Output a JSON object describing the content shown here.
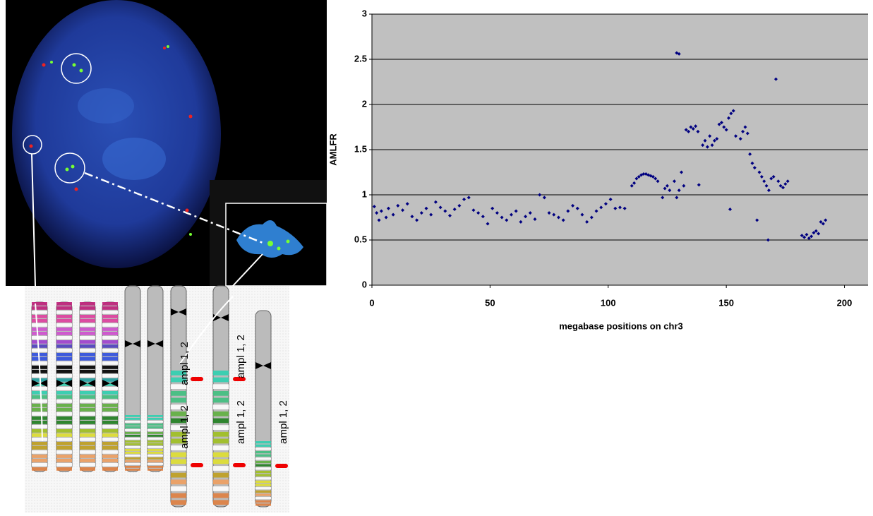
{
  "chart_data": {
    "type": "scatter",
    "xlabel": "megabase positions on chr3",
    "ylabel": "AMLFR",
    "color": "#000080",
    "grid": true,
    "xlim": [
      0,
      210
    ],
    "ylim": [
      0,
      3
    ],
    "xticks": [
      0,
      50,
      100,
      150,
      200
    ],
    "yticks": [
      0,
      0.5,
      1,
      1.5,
      2,
      2.5,
      3
    ],
    "x": [
      1,
      2,
      3,
      4,
      6,
      7,
      9,
      11,
      13,
      15,
      17,
      19,
      21,
      23,
      25,
      27,
      29,
      31,
      33,
      35,
      37,
      39,
      41,
      43,
      45,
      47,
      49,
      51,
      53,
      55,
      57,
      59,
      61,
      63,
      65,
      67,
      69,
      71,
      73,
      75,
      77,
      79,
      81,
      83,
      85,
      87,
      89,
      91,
      93,
      95,
      97,
      99,
      101,
      103,
      105,
      107,
      110,
      111,
      112,
      113,
      114,
      115,
      116,
      117,
      118,
      119,
      120,
      121,
      123,
      124,
      125,
      126,
      128,
      129,
      130,
      131,
      132,
      133,
      134,
      135,
      136,
      137,
      138,
      129,
      130,
      140,
      141,
      142,
      143,
      144,
      145,
      146,
      138.4,
      147,
      148,
      149,
      150,
      151,
      152,
      153,
      154,
      151.6,
      156,
      157,
      158,
      159,
      160,
      161,
      162,
      163,
      164,
      165,
      166,
      167,
      168,
      169,
      170,
      171,
      167.7,
      172,
      173,
      174,
      175,
      176,
      182,
      183,
      184,
      185,
      186,
      187,
      188,
      189,
      190,
      191,
      192
    ],
    "values": [
      0.87,
      0.8,
      0.72,
      0.82,
      0.75,
      0.85,
      0.78,
      0.88,
      0.83,
      0.9,
      0.76,
      0.72,
      0.8,
      0.85,
      0.78,
      0.92,
      0.86,
      0.82,
      0.77,
      0.84,
      0.88,
      0.95,
      0.97,
      0.83,
      0.8,
      0.76,
      0.68,
      0.85,
      0.8,
      0.75,
      0.72,
      0.78,
      0.82,
      0.7,
      0.76,
      0.8,
      0.73,
      1.0,
      0.97,
      0.8,
      0.78,
      0.75,
      0.72,
      0.82,
      0.88,
      0.85,
      0.78,
      0.7,
      0.75,
      0.82,
      0.86,
      0.9,
      0.95,
      0.85,
      0.86,
      0.85,
      1.1,
      1.13,
      1.18,
      1.2,
      1.22,
      1.23,
      1.23,
      1.22,
      1.21,
      1.2,
      1.18,
      1.15,
      0.97,
      1.07,
      1.1,
      1.05,
      1.15,
      0.97,
      1.05,
      1.25,
      1.1,
      1.72,
      1.7,
      1.75,
      1.73,
      1.76,
      1.7,
      2.57,
      2.56,
      1.55,
      1.6,
      1.53,
      1.65,
      1.55,
      1.6,
      1.62,
      1.11,
      1.78,
      1.8,
      1.75,
      1.72,
      1.85,
      1.9,
      1.93,
      1.65,
      0.84,
      1.62,
      1.7,
      1.75,
      1.68,
      1.45,
      1.35,
      1.3,
      0.72,
      1.25,
      1.2,
      1.15,
      1.1,
      1.05,
      1.18,
      1.2,
      2.28,
      0.5,
      1.15,
      1.1,
      1.08,
      1.12,
      1.15,
      0.55,
      0.53,
      0.56,
      0.52,
      0.54,
      0.58,
      0.6,
      0.57,
      0.7,
      0.68,
      0.72
    ]
  },
  "figure": {
    "labels": [
      "ampl 1, 2",
      "ampl 1, 2",
      "ampl 1, 2",
      "ampl 1, 2",
      "ampl 1, 2"
    ]
  }
}
